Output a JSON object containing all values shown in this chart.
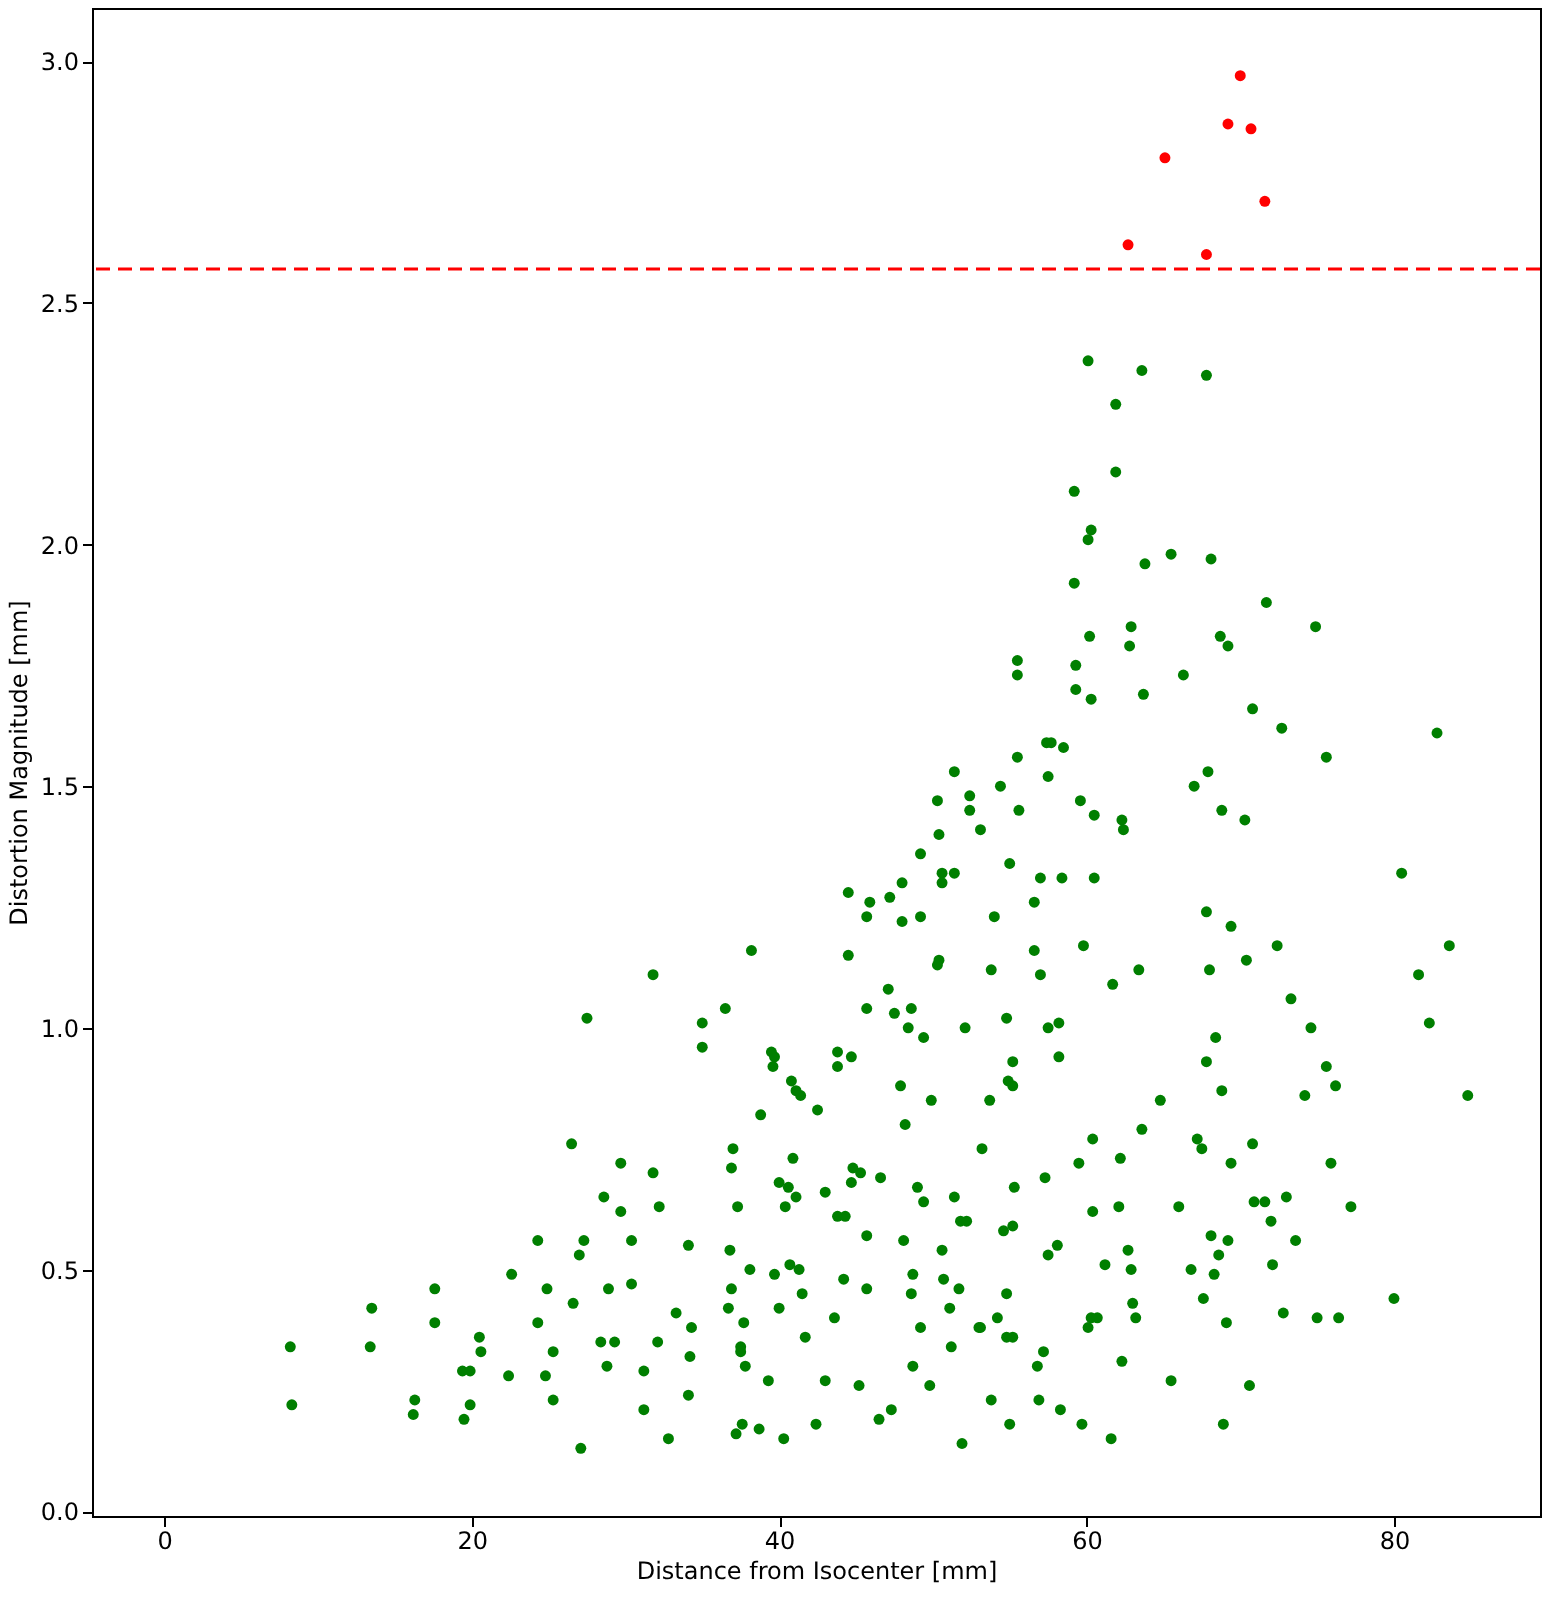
{
  "chart_data": {
    "type": "scatter",
    "xlabel": "Distance from Isocenter [mm]",
    "ylabel": "Distortion Magnitude [mm]",
    "xlim": [
      -4.7,
      89.5
    ],
    "ylim": [
      -0.01,
      3.11
    ],
    "xticks": [
      0,
      20,
      40,
      60,
      80
    ],
    "yticks": [
      {
        "value": 0,
        "label": "0.0"
      },
      {
        "value": 0.5,
        "label": "0.5"
      },
      {
        "value": 1,
        "label": "1.0"
      },
      {
        "value": 1.5,
        "label": "1.5"
      },
      {
        "value": 2,
        "label": "2.0"
      },
      {
        "value": 2.5,
        "label": "2.5"
      },
      {
        "value": 3,
        "label": "3.0"
      }
    ],
    "grid": false,
    "marker": "circle",
    "ref_lines": [
      {
        "axis": "y",
        "value": 2.57,
        "color": "#ff0000",
        "line_style": "dashed"
      }
    ],
    "series": [
      {
        "color": "#007f00",
        "x": [
          27.5,
          26.5,
          29.7,
          28.6,
          29.7,
          24.3,
          27.3,
          27.0,
          22.6,
          17.6,
          24.9,
          28.9,
          26.6,
          13.5,
          24.3,
          17.6,
          20.5,
          20.6,
          28.4,
          29.3,
          8.2,
          13.4,
          25.3,
          28.8,
          19.4,
          19.9,
          22.4,
          24.8,
          16.3,
          19.9,
          25.3,
          8.3,
          16.2,
          19.5,
          27.1,
          44.5,
          45.9,
          47.2,
          45.7,
          49.2,
          48.0,
          54.0,
          56.6,
          38.2,
          44.5,
          50.4,
          50.3,
          56.6,
          31.8,
          53.8,
          57.0,
          47.1,
          36.5,
          45.7,
          47.5,
          48.6,
          54.8,
          35.0,
          48.4,
          49.4,
          52.1,
          57.5,
          58.2,
          35.0,
          39.5,
          39.7,
          39.6,
          43.8,
          44.7,
          43.8,
          58.2,
          55.2,
          40.8,
          41.1,
          41.4,
          47.9,
          54.9,
          55.2,
          42.5,
          38.8,
          49.9,
          53.7,
          48.2,
          37.0,
          53.2,
          31.8,
          36.9,
          40.9,
          57.3,
          40.0,
          40.6,
          41.1,
          44.8,
          45.3,
          44.7,
          46.6,
          43.0,
          49.0,
          49.4,
          55.3,
          32.2,
          37.3,
          40.4,
          51.4,
          43.8,
          44.3,
          51.8,
          52.2,
          54.6,
          55.2,
          30.4,
          34.1,
          45.7,
          48.1,
          50.6,
          58.1,
          57.5,
          36.8,
          38.1,
          39.7,
          40.7,
          41.3,
          30.4,
          36.9,
          41.5,
          44.2,
          45.7,
          48.7,
          50.7,
          51.7,
          48.6,
          54.8,
          33.3,
          34.3,
          36.7,
          37.7,
          40.0,
          43.6,
          51.1,
          54.2,
          53.0,
          53.1,
          54.8,
          55.2,
          49.2,
          32.1,
          34.2,
          37.5,
          37.5,
          37.8,
          41.7,
          51.2,
          57.2,
          56.8,
          31.2,
          39.3,
          43.0,
          45.2,
          48.7,
          49.8,
          31.2,
          34.1,
          53.8,
          56.9,
          58.3,
          32.8,
          37.2,
          37.6,
          38.7,
          40.3,
          42.4,
          46.5,
          47.3,
          55.0,
          51.9,
          67.8,
          69.4,
          59.8,
          63.4,
          61.7,
          68.0,
          70.4,
          72.4,
          83.6,
          81.6,
          82.3,
          73.3,
          74.6,
          68.4,
          67.8,
          68.8,
          75.6,
          76.2,
          74.2,
          84.8,
          64.8,
          63.6,
          60.4,
          67.2,
          67.5,
          70.8,
          59.5,
          62.2,
          69.4,
          75.9,
          60.4,
          62.1,
          66.0,
          70.9,
          71.6,
          73.0,
          77.2,
          72.0,
          68.1,
          69.2,
          68.6,
          73.6,
          62.7,
          62.9,
          61.2,
          66.8,
          68.3,
          72.1,
          80.0,
          67.6,
          63.0,
          63.2,
          60.3,
          60.7,
          60.1,
          69.1,
          72.8,
          75.0,
          76.4,
          62.3,
          65.5,
          70.6,
          59.7,
          61.6,
          68.9,
          60.1,
          63.6,
          67.8,
          61.9,
          61.9,
          59.2,
          60.3,
          60.1,
          63.8,
          65.5,
          68.1,
          59.2,
          71.7,
          74.9,
          62.9,
          62.8,
          60.2,
          68.7,
          69.2,
          55.5,
          55.5,
          59.3,
          59.3,
          60.3,
          63.7,
          66.3,
          70.8,
          72.7,
          82.8,
          75.6,
          57.4,
          57.7,
          58.5,
          55.5,
          57.5,
          54.4,
          52.4,
          52.4,
          55.6,
          53.1,
          59.6,
          60.5,
          62.3,
          62.4,
          67.9,
          67.0,
          68.8,
          70.3,
          55.0,
          57.0,
          58.4,
          60.5,
          80.5,
          51.4,
          50.3,
          50.4,
          49.2,
          50.6,
          51.4,
          50.6,
          48.0
        ],
        "values": [
          1.02,
          0.76,
          0.72,
          0.65,
          0.62,
          0.56,
          0.56,
          0.53,
          0.49,
          0.46,
          0.46,
          0.46,
          0.43,
          0.42,
          0.39,
          0.39,
          0.36,
          0.33,
          0.35,
          0.35,
          0.34,
          0.34,
          0.33,
          0.3,
          0.29,
          0.29,
          0.28,
          0.28,
          0.23,
          0.22,
          0.23,
          0.22,
          0.2,
          0.19,
          0.13,
          1.28,
          1.26,
          1.27,
          1.23,
          1.23,
          1.22,
          1.23,
          1.26,
          1.16,
          1.15,
          1.14,
          1.13,
          1.16,
          1.11,
          1.12,
          1.11,
          1.08,
          1.04,
          1.04,
          1.03,
          1.04,
          1.02,
          1.01,
          1.0,
          0.98,
          1.0,
          1.0,
          1.01,
          0.96,
          0.95,
          0.94,
          0.92,
          0.95,
          0.94,
          0.92,
          0.94,
          0.93,
          0.89,
          0.87,
          0.86,
          0.88,
          0.89,
          0.88,
          0.83,
          0.82,
          0.85,
          0.85,
          0.8,
          0.75,
          0.75,
          0.7,
          0.71,
          0.73,
          0.69,
          0.68,
          0.67,
          0.65,
          0.71,
          0.7,
          0.68,
          0.69,
          0.66,
          0.67,
          0.64,
          0.67,
          0.63,
          0.63,
          0.63,
          0.65,
          0.61,
          0.61,
          0.6,
          0.6,
          0.58,
          0.59,
          0.56,
          0.55,
          0.57,
          0.56,
          0.54,
          0.55,
          0.53,
          0.54,
          0.5,
          0.49,
          0.51,
          0.5,
          0.47,
          0.46,
          0.45,
          0.48,
          0.46,
          0.49,
          0.48,
          0.46,
          0.45,
          0.45,
          0.41,
          0.38,
          0.42,
          0.39,
          0.42,
          0.4,
          0.42,
          0.4,
          0.38,
          0.38,
          0.36,
          0.36,
          0.38,
          0.35,
          0.32,
          0.34,
          0.33,
          0.3,
          0.36,
          0.34,
          0.33,
          0.3,
          0.29,
          0.27,
          0.27,
          0.26,
          0.3,
          0.26,
          0.21,
          0.24,
          0.23,
          0.23,
          0.21,
          0.15,
          0.16,
          0.18,
          0.17,
          0.15,
          0.18,
          0.19,
          0.21,
          0.18,
          0.14,
          1.24,
          1.21,
          1.17,
          1.12,
          1.09,
          1.12,
          1.14,
          1.17,
          1.17,
          1.11,
          1.01,
          1.06,
          1.0,
          0.98,
          0.93,
          0.87,
          0.92,
          0.88,
          0.86,
          0.86,
          0.85,
          0.79,
          0.77,
          0.77,
          0.75,
          0.76,
          0.72,
          0.73,
          0.72,
          0.72,
          0.62,
          0.63,
          0.63,
          0.64,
          0.64,
          0.65,
          0.63,
          0.6,
          0.57,
          0.56,
          0.53,
          0.56,
          0.54,
          0.5,
          0.51,
          0.5,
          0.49,
          0.51,
          0.44,
          0.44,
          0.43,
          0.4,
          0.4,
          0.4,
          0.38,
          0.39,
          0.41,
          0.4,
          0.4,
          0.31,
          0.27,
          0.26,
          0.18,
          0.15,
          0.18,
          2.38,
          2.36,
          2.35,
          2.29,
          2.15,
          2.11,
          2.03,
          2.01,
          1.96,
          1.98,
          1.97,
          1.92,
          1.88,
          1.83,
          1.83,
          1.79,
          1.81,
          1.81,
          1.79,
          1.76,
          1.73,
          1.75,
          1.7,
          1.68,
          1.69,
          1.73,
          1.66,
          1.62,
          1.61,
          1.56,
          1.59,
          1.59,
          1.58,
          1.56,
          1.52,
          1.5,
          1.48,
          1.45,
          1.45,
          1.41,
          1.47,
          1.44,
          1.43,
          1.41,
          1.53,
          1.5,
          1.45,
          1.43,
          1.34,
          1.31,
          1.31,
          1.31,
          1.32,
          1.53,
          1.47,
          1.4,
          1.36,
          1.32,
          1.32,
          1.3,
          1.3
        ]
      },
      {
        "color": "#ff0000",
        "x": [
          62.7,
          65.1,
          67.8,
          69.2,
          70.0,
          70.7,
          71.6
        ],
        "values": [
          2.62,
          2.8,
          2.6,
          2.87,
          2.97,
          2.86,
          2.71
        ]
      }
    ]
  }
}
